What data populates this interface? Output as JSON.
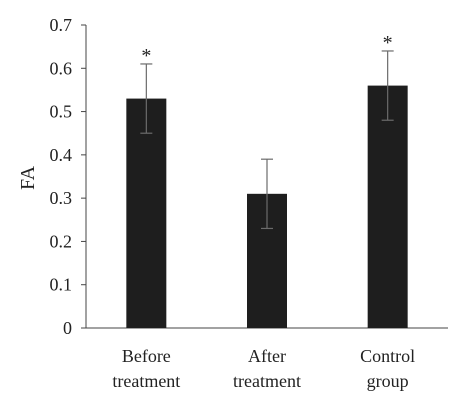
{
  "chart_data": {
    "type": "bar",
    "title": "",
    "xlabel": "",
    "ylabel": "FA",
    "ylim": [
      0,
      0.7
    ],
    "yticks": [
      "0",
      "0.1",
      "0.2",
      "0.3",
      "0.4",
      "0.5",
      "0.6",
      "0.7"
    ],
    "categories": [
      [
        "Before",
        "treatment"
      ],
      [
        "After",
        "treatment"
      ],
      [
        "Control",
        "group"
      ]
    ],
    "values": [
      0.53,
      0.31,
      0.56
    ],
    "error": [
      0.08,
      0.08,
      0.08
    ],
    "annotations": [
      "*",
      "",
      "*"
    ],
    "bar_color": "#1e1e1e",
    "error_color": "#6b6b6b",
    "grid": false
  }
}
